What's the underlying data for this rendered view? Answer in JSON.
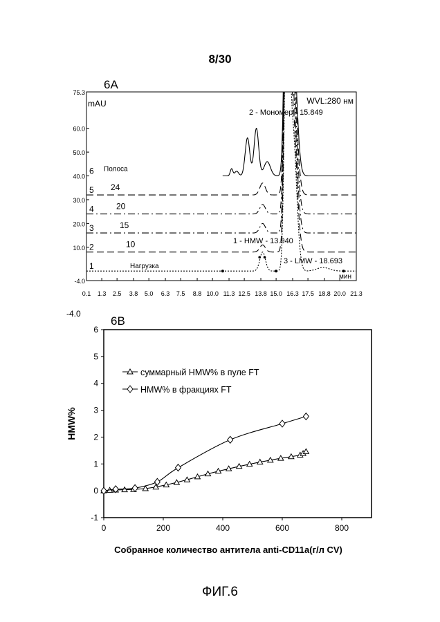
{
  "page_number": "8/30",
  "figure_caption": "ФИГ.6",
  "chart_data": [
    {
      "type": "line",
      "panel_label": "6A",
      "ylabel": "mAU",
      "wavelength_label": "WVL:280 нм",
      "xlabel": "мин",
      "ylim": [
        -4.0,
        75.3
      ],
      "xlim": [
        0.1,
        21.3
      ],
      "y_ticks": [
        "75.3",
        "60.0",
        "50.0",
        "40.0",
        "30.0",
        "20.0",
        "10.0",
        "-4.0"
      ],
      "x_ticks": [
        "0.1",
        "1.3",
        "2.5",
        "3.8",
        "5.0",
        "6.3",
        "7.5",
        "8.8",
        "10.0",
        "11.3",
        "12.5",
        "13.8",
        "15.0",
        "16.3",
        "17.5",
        "18.8",
        "20.0",
        "21.3"
      ],
      "below_axis_label": "-4.0",
      "traces": [
        {
          "number": "6",
          "name": "Полоса",
          "baseline": 40
        },
        {
          "number": "5",
          "name": "24",
          "baseline": 32
        },
        {
          "number": "4",
          "name": "20",
          "baseline": 24
        },
        {
          "number": "3",
          "name": "15",
          "baseline": 16
        },
        {
          "number": "2",
          "name": "10",
          "baseline": 8
        },
        {
          "number": "1",
          "name": "Нагрузка",
          "baseline": 0
        }
      ],
      "peak_annotations": [
        {
          "text": "2 - Мономер - 15.849",
          "x": 15.849
        },
        {
          "text": "1 - HMW - 13.940",
          "x": 13.94
        },
        {
          "text": "3 - LMW - 18.693",
          "x": 18.693
        }
      ]
    },
    {
      "type": "line",
      "panel_label": "6B",
      "xlabel": "Собранное количество антитела anti-CD11a(г/л CV)",
      "ylabel": "HMW%",
      "xlim": [
        0,
        900
      ],
      "ylim": [
        -1,
        6
      ],
      "x_ticks": [
        0,
        200,
        400,
        600,
        800
      ],
      "y_ticks": [
        -1,
        0,
        1,
        2,
        3,
        4,
        5,
        6
      ],
      "legend_position": "upper-left",
      "series": [
        {
          "name": "суммарный HMW% в пуле FT",
          "marker": "triangle",
          "x": [
            0,
            20,
            40,
            70,
            100,
            140,
            175,
            210,
            245,
            280,
            315,
            350,
            385,
            420,
            455,
            490,
            525,
            560,
            595,
            630,
            660,
            670,
            680
          ],
          "y": [
            0,
            0.02,
            0.03,
            0.04,
            0.05,
            0.08,
            0.14,
            0.22,
            0.31,
            0.41,
            0.52,
            0.63,
            0.73,
            0.82,
            0.91,
            0.99,
            1.07,
            1.14,
            1.21,
            1.27,
            1.33,
            1.39,
            1.46
          ]
        },
        {
          "name": "HMW% в фракциях FT",
          "marker": "diamond",
          "x": [
            0,
            40,
            105,
            180,
            250,
            425,
            600,
            680
          ],
          "y": [
            0,
            0.06,
            0.1,
            0.33,
            0.86,
            1.9,
            2.5,
            2.77
          ]
        }
      ]
    }
  ]
}
